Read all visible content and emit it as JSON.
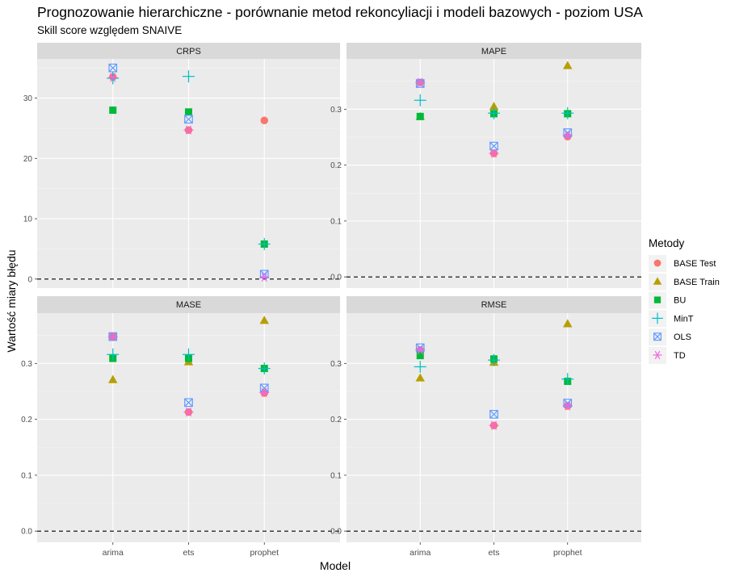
{
  "title": "Prognozowanie hierarchiczne  - porównanie metod rekoncyliacji i modeli bazowych - poziom USA",
  "subtitle": "Skill score względem SNAIVE",
  "xlabel": "Model",
  "ylabel": "Wartość miary błędu",
  "legend": {
    "title": "Metody",
    "placement": "right",
    "items": [
      {
        "name": "BASE Test",
        "color": "#F8766D",
        "shape": "circle"
      },
      {
        "name": "BASE Train",
        "color": "#B79F00",
        "shape": "triangle"
      },
      {
        "name": "BU",
        "color": "#00BA38",
        "shape": "square"
      },
      {
        "name": "MinT",
        "color": "#00BFC4",
        "shape": "plus"
      },
      {
        "name": "OLS",
        "color": "#619CFF",
        "shape": "square-cross"
      },
      {
        "name": "TD",
        "color": "#F564E3",
        "shape": "asterisk"
      }
    ]
  },
  "chart_data": {
    "type": "scatter",
    "categories": [
      "arima",
      "ets",
      "prophet"
    ],
    "reference_line": 0,
    "panels": [
      {
        "name": "CRPS",
        "ylim": [
          -1.5,
          36.5
        ],
        "yticks": [
          0,
          10,
          20,
          30
        ],
        "tick_labels": [
          "0",
          "10",
          "20",
          "30"
        ],
        "series": [
          {
            "name": "BASE Test",
            "values": [
              33.5,
              24.7,
              26.3
            ]
          },
          {
            "name": "BASE Train",
            "values": [
              null,
              null,
              null
            ]
          },
          {
            "name": "BU",
            "values": [
              28.0,
              27.7,
              5.8
            ]
          },
          {
            "name": "MinT",
            "values": [
              33.3,
              33.6,
              5.8
            ]
          },
          {
            "name": "OLS",
            "values": [
              35.0,
              26.5,
              0.8
            ]
          },
          {
            "name": "TD",
            "values": [
              33.4,
              24.7,
              0.3
            ]
          }
        ]
      },
      {
        "name": "MAPE",
        "ylim": [
          -0.02,
          0.39
        ],
        "yticks": [
          0,
          0.1,
          0.2,
          0.3
        ],
        "tick_labels": [
          "0.0",
          "0.1",
          "0.2",
          "0.3"
        ],
        "series": [
          {
            "name": "BASE Test",
            "values": [
              0.348,
              0.221,
              0.251
            ]
          },
          {
            "name": "BASE Train",
            "values": [
              0.287,
              0.305,
              0.378
            ]
          },
          {
            "name": "BU",
            "values": [
              0.287,
              0.292,
              0.292
            ]
          },
          {
            "name": "MinT",
            "values": [
              0.316,
              0.293,
              0.293
            ]
          },
          {
            "name": "OLS",
            "values": [
              0.346,
              0.234,
              0.258
            ]
          },
          {
            "name": "TD",
            "values": [
              0.348,
              0.221,
              0.253
            ]
          }
        ]
      },
      {
        "name": "MASE",
        "ylim": [
          -0.02,
          0.39
        ],
        "yticks": [
          0,
          0.1,
          0.2,
          0.3
        ],
        "tick_labels": [
          "0.0",
          "0.1",
          "0.2",
          "0.3"
        ],
        "series": [
          {
            "name": "BASE Test",
            "values": [
              0.348,
              0.213,
              0.247
            ]
          },
          {
            "name": "BASE Train",
            "values": [
              0.271,
              0.303,
              0.377
            ]
          },
          {
            "name": "BU",
            "values": [
              0.309,
              0.309,
              0.291
            ]
          },
          {
            "name": "MinT",
            "values": [
              0.316,
              0.316,
              0.291
            ]
          },
          {
            "name": "OLS",
            "values": [
              0.348,
              0.23,
              0.256
            ]
          },
          {
            "name": "TD",
            "values": [
              0.348,
              0.213,
              0.248
            ]
          }
        ]
      },
      {
        "name": "RMSE",
        "ylim": [
          -0.02,
          0.39
        ],
        "yticks": [
          0,
          0.1,
          0.2,
          0.3
        ],
        "tick_labels": [
          "0.0",
          "0.1",
          "0.2",
          "0.3"
        ],
        "series": [
          {
            "name": "BASE Test",
            "values": [
              0.324,
              0.189,
              0.224
            ]
          },
          {
            "name": "BASE Train",
            "values": [
              0.274,
              0.302,
              0.371
            ]
          },
          {
            "name": "BU",
            "values": [
              0.314,
              0.308,
              0.268
            ]
          },
          {
            "name": "MinT",
            "values": [
              0.294,
              0.306,
              0.272
            ]
          },
          {
            "name": "OLS",
            "values": [
              0.328,
              0.209,
              0.229
            ]
          },
          {
            "name": "TD",
            "values": [
              0.324,
              0.189,
              0.224
            ]
          }
        ]
      }
    ]
  }
}
